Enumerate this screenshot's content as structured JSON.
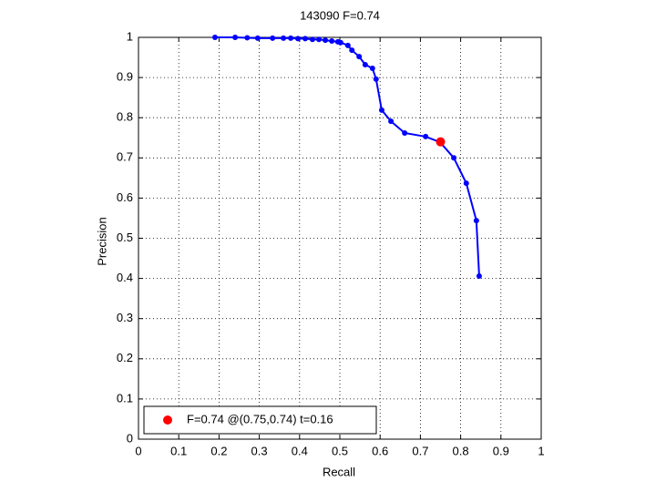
{
  "chart_data": {
    "type": "line",
    "title": "143090 F=0.74",
    "xlabel": "Recall",
    "ylabel": "Precision",
    "xlim": [
      0,
      1
    ],
    "ylim": [
      0,
      1
    ],
    "xticks": [
      0,
      0.1,
      0.2,
      0.3,
      0.4,
      0.5,
      0.6,
      0.7,
      0.8,
      0.9,
      1
    ],
    "yticks": [
      0,
      0.1,
      0.2,
      0.3,
      0.4,
      0.5,
      0.6,
      0.7,
      0.8,
      0.9,
      1
    ],
    "grid": true,
    "legend_position": "lower left",
    "series": [
      {
        "color": "#0000ff",
        "marker": "dot",
        "x": [
          0.19,
          0.24,
          0.27,
          0.296,
          0.333,
          0.36,
          0.378,
          0.396,
          0.414,
          0.432,
          0.448,
          0.464,
          0.48,
          0.495,
          0.502,
          0.52,
          0.53,
          0.548,
          0.563,
          0.581,
          0.59,
          0.604,
          0.627,
          0.661,
          0.713,
          0.749,
          0.783,
          0.814,
          0.839,
          0.846
        ],
        "values": [
          1.0,
          1.0,
          0.999,
          0.998,
          0.998,
          0.998,
          0.998,
          0.997,
          0.997,
          0.995,
          0.995,
          0.993,
          0.991,
          0.989,
          0.987,
          0.98,
          0.968,
          0.952,
          0.932,
          0.923,
          0.896,
          0.819,
          0.791,
          0.762,
          0.753,
          0.739,
          0.7,
          0.637,
          0.544,
          0.406
        ]
      },
      {
        "name": "F=0.74 @(0.75,0.74) t=0.16",
        "color": "#ff0000",
        "marker": "big-dot",
        "x": [
          0.75
        ],
        "values": [
          0.74
        ]
      }
    ]
  }
}
